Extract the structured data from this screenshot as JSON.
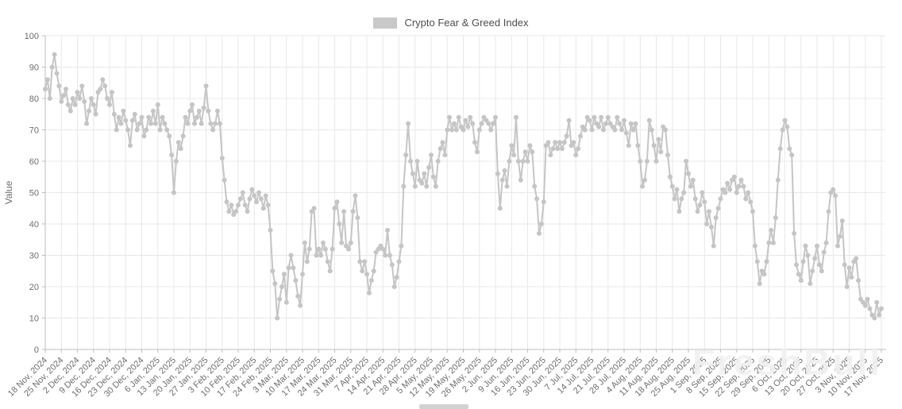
{
  "legend": {
    "label": "Crypto Fear & Greed Index",
    "swatch_color": "#c9c9c9"
  },
  "watermark": {
    "text": "FreshBull"
  },
  "colors": {
    "series": "#c5c5c5",
    "grid": "#e8e8e8",
    "axis": "#bdbdbd",
    "tick_text": "#6e6e6e",
    "legend_text": "#4d4d4d",
    "watermark": "#f1f1f1",
    "background": "#ffffff"
  },
  "chart_data": {
    "type": "line",
    "title": "Crypto Fear & Greed Index",
    "xlabel": "",
    "ylabel": "Value",
    "ylim": [
      0,
      100
    ],
    "grid": true,
    "legend_position": "top-center",
    "marker": "circle",
    "y_ticks": [
      0,
      10,
      20,
      30,
      40,
      50,
      60,
      70,
      80,
      90,
      100
    ],
    "x_tick_interval_days": 7,
    "x_tick_labels": [
      "18 Nov, 2024",
      "25 Nov, 2024",
      "2 Dec, 2024",
      "9 Dec, 2024",
      "16 Dec, 2024",
      "23 Dec, 2024",
      "30 Dec, 2024",
      "6 Jan, 2025",
      "13 Jan, 2025",
      "20 Jan, 2025",
      "27 Jan, 2025",
      "3 Feb, 2025",
      "10 Feb, 2025",
      "17 Feb, 2025",
      "24 Feb, 2025",
      "3 Mar, 2025",
      "10 Mar, 2025",
      "17 Mar, 2025",
      "24 Mar, 2025",
      "31 Mar, 2025",
      "7 Apr, 2025",
      "14 Apr, 2025",
      "21 Apr, 2025",
      "28 Apr, 2025",
      "5 May, 2025",
      "12 May, 2025",
      "19 May, 2025",
      "26 May, 2025",
      "2 Jun, 2025",
      "9 Jun, 2025",
      "16 Jun, 2025",
      "23 Jun, 2025",
      "30 Jun, 2025",
      "7 Jul, 2025",
      "14 Jul, 2025",
      "21 Jul, 2025",
      "28 Jul, 2025",
      "4 Aug, 2025",
      "11 Aug, 2025",
      "18 Aug, 2025",
      "25 Aug, 2025",
      "1 Sep, 2025",
      "8 Sep, 2025",
      "15 Sep, 2025",
      "22 Sep, 2025",
      "29 Sep, 2025",
      "6 Oct, 2025",
      "13 Oct, 2025",
      "20 Oct, 2025",
      "27 Oct, 2025",
      "3 Nov, 2025",
      "10 Nov, 2025",
      "17 Nov, 2025"
    ],
    "series": [
      {
        "name": "Crypto Fear & Greed Index",
        "color": "#c5c5c5",
        "frequency": "daily",
        "values": [
          83,
          86,
          80,
          90,
          94,
          88,
          84,
          79,
          81,
          83,
          78,
          76,
          80,
          78,
          82,
          80,
          84,
          79,
          72,
          76,
          80,
          78,
          75,
          82,
          83,
          86,
          84,
          80,
          78,
          82,
          75,
          70,
          74,
          72,
          76,
          73,
          70,
          65,
          73,
          75,
          70,
          72,
          74,
          68,
          70,
          74,
          72,
          76,
          72,
          78,
          70,
          74,
          72,
          70,
          68,
          62,
          50,
          60,
          66,
          64,
          68,
          74,
          72,
          76,
          78,
          72,
          74,
          76,
          72,
          77,
          84,
          76,
          72,
          70,
          72,
          76,
          72,
          61,
          54,
          47,
          44,
          46,
          43,
          44,
          46,
          48,
          50,
          46,
          44,
          48,
          51,
          49,
          47,
          50,
          48,
          45,
          49,
          46,
          38,
          25,
          21,
          10,
          16,
          20,
          24,
          15,
          26,
          30,
          26,
          22,
          17,
          14,
          24,
          34,
          28,
          32,
          44,
          45,
          30,
          32,
          30,
          34,
          32,
          28,
          25,
          32,
          45,
          47,
          40,
          34,
          44,
          33,
          32,
          34,
          44,
          49,
          42,
          28,
          25,
          28,
          24,
          18,
          22,
          25,
          31,
          32,
          33,
          32,
          30,
          38,
          30,
          27,
          20,
          23,
          28,
          33,
          52,
          62,
          72,
          60,
          56,
          52,
          60,
          54,
          53,
          56,
          52,
          58,
          62,
          55,
          52,
          60,
          64,
          66,
          62,
          70,
          74,
          70,
          72,
          70,
          74,
          71,
          70,
          73,
          71,
          74,
          72,
          66,
          63,
          70,
          72,
          74,
          73,
          72,
          70,
          72,
          74,
          56,
          45,
          54,
          57,
          52,
          60,
          65,
          62,
          74,
          60,
          54,
          60,
          63,
          60,
          65,
          63,
          52,
          48,
          37,
          40,
          47,
          65,
          66,
          62,
          64,
          66,
          64,
          66,
          64,
          66,
          68,
          73,
          65,
          66,
          62,
          64,
          68,
          71,
          70,
          74,
          73,
          70,
          74,
          72,
          71,
          74,
          70,
          72,
          74,
          72,
          71,
          70,
          74,
          72,
          70,
          73,
          69,
          65,
          72,
          70,
          72,
          65,
          60,
          52,
          54,
          60,
          73,
          70,
          65,
          60,
          67,
          63,
          71,
          70,
          62,
          55,
          52,
          48,
          51,
          44,
          48,
          50,
          60,
          56,
          52,
          54,
          48,
          44,
          46,
          50,
          47,
          40,
          44,
          39,
          33,
          42,
          45,
          48,
          51,
          50,
          53,
          51,
          54,
          55,
          50,
          52,
          54,
          52,
          48,
          50,
          47,
          44,
          33,
          28,
          21,
          25,
          24,
          28,
          34,
          38,
          34,
          42,
          54,
          64,
          70,
          73,
          71,
          64,
          62,
          37,
          27,
          24,
          22,
          28,
          33,
          30,
          21,
          25,
          29,
          33,
          27,
          25,
          31,
          34,
          44,
          50,
          51,
          49,
          33,
          36,
          41,
          27,
          20,
          26,
          23,
          28,
          29,
          22,
          16,
          15,
          14,
          16,
          13,
          11,
          10,
          15,
          11,
          13
        ]
      }
    ]
  }
}
